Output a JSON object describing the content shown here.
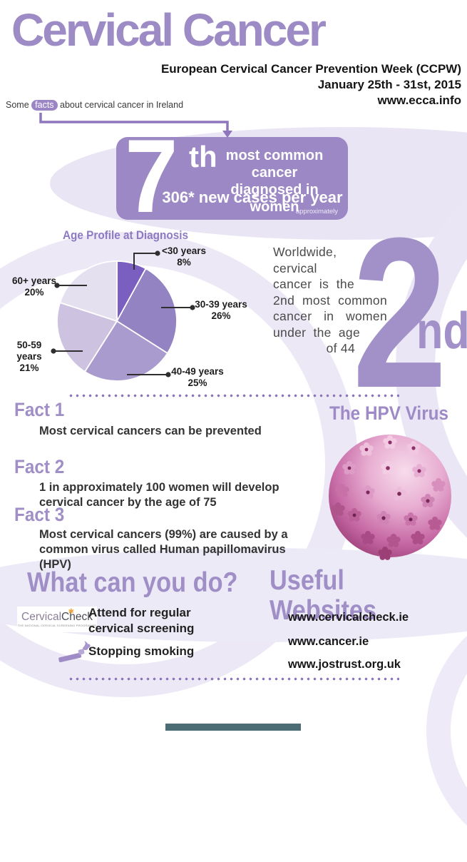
{
  "title": "Cervical Cancer",
  "header": {
    "line1": "European Cervical Cancer Prevention Week (CCPW)",
    "line2": "January 25th - 31st, 2015",
    "line3": "www.ecca.info"
  },
  "intro": {
    "pre": "Some",
    "highlight": "facts",
    "post": "about cervical cancer in Ireland"
  },
  "stat_box": {
    "number": "7",
    "suffix": "th",
    "line1": "most common cancer",
    "line2": "diagnosed in women",
    "cases": "306* new cases per year",
    "note": "* approximately"
  },
  "chart_data": {
    "type": "pie",
    "title": "Age Profile at Diagnosis",
    "labels": [
      "<30 years",
      "30-39 years",
      "40-49 years",
      "50-59 years",
      "60+ years"
    ],
    "values": [
      8,
      26,
      25,
      21,
      20
    ],
    "pct_labels": [
      "8%",
      "26%",
      "25%",
      "21%",
      "20%"
    ],
    "colors": [
      "#7a5fc0",
      "#9383c2",
      "#aa9bce",
      "#cdc3e1",
      "#e5e0f0"
    ],
    "start_angle_deg": -90,
    "direction": "clockwise",
    "legend": "callout-labels"
  },
  "worldwide": {
    "lines": [
      "Worldwide,",
      "cervical",
      "cancer is the",
      "2nd most common",
      "cancer in women",
      "under the age",
      "of 44"
    ],
    "big_number": "2",
    "big_suffix": "nd"
  },
  "facts": [
    {
      "title": "Fact 1",
      "text": "Most cervical cancers can be prevented"
    },
    {
      "title": "Fact 2",
      "text": "1 in approximately 100 women will develop cervical cancer by the age of 75"
    },
    {
      "title": "Fact 3",
      "text": "Most cervical cancers (99%) are caused by a common virus called Human papillomavirus (HPV)"
    }
  ],
  "hpv": {
    "heading": "The HPV Virus"
  },
  "actions": {
    "heading": "What can you do?",
    "logo": {
      "part1": "Cervical",
      "part2": "Check",
      "flower": "✱",
      "tagline": "THE NATIONAL CERVICAL SCREENING PROGRAMME"
    },
    "item1": "Attend for regular cervical screening",
    "item2": "Stopping smoking"
  },
  "websites": {
    "heading": "Useful Websites",
    "items": [
      "www.cervicalcheck.ie",
      "www.cancer.ie",
      "www.jostrust.org.uk"
    ]
  },
  "colors": {
    "accent_purple": "#9d8ac6",
    "stat_box": "#9c88c4",
    "text_dark": "#333333",
    "footer_teal": "#4d6d74"
  }
}
